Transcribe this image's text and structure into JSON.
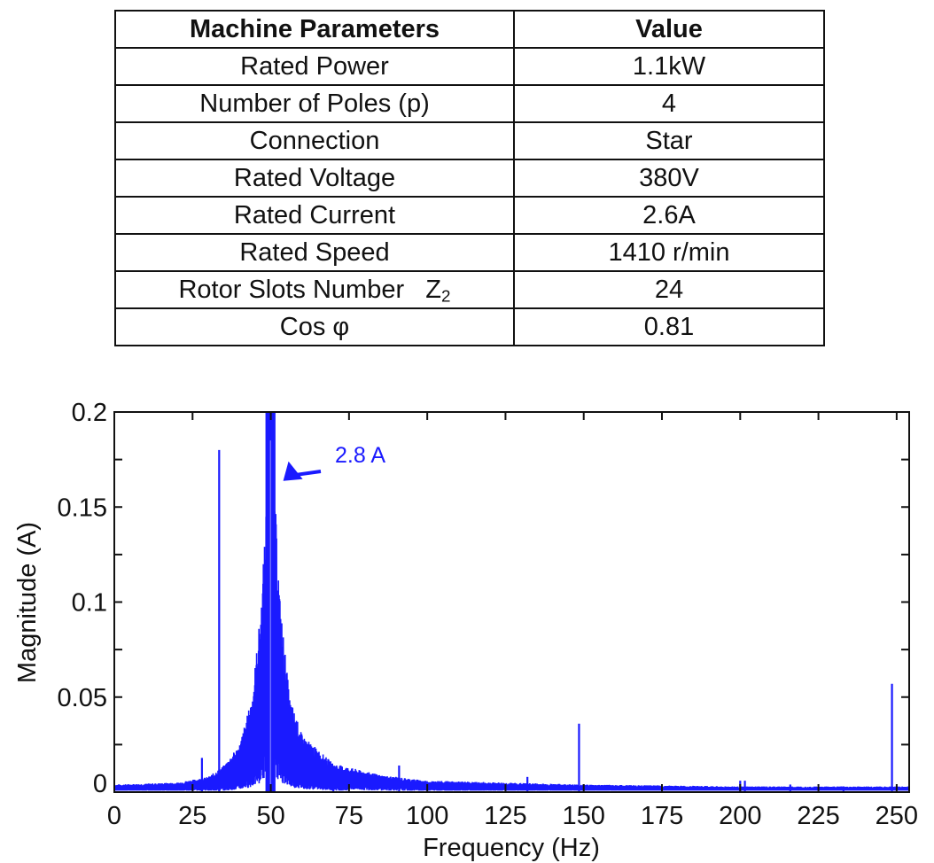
{
  "table": {
    "headers": [
      "Machine Parameters",
      "Value"
    ],
    "rows": [
      {
        "param": "Rated Power",
        "value": "1.1kW"
      },
      {
        "param": "Number of Poles (p)",
        "value": "4"
      },
      {
        "param": "Connection",
        "value": "Star"
      },
      {
        "param": "Rated Voltage",
        "value": "380V"
      },
      {
        "param": "Rated Current",
        "value": "2.6A"
      },
      {
        "param": "Rated Speed",
        "value": "1410 r/min"
      },
      {
        "param": "Rotor Slots Number   Z",
        "param_sub": "2",
        "value": "24"
      },
      {
        "param": "Cos φ",
        "value": "0.81"
      }
    ]
  },
  "chart_data": {
    "type": "line",
    "title": "",
    "xlabel": "Frequency (Hz)",
    "ylabel": "Magnitude (A)",
    "xlim": [
      0,
      254
    ],
    "ylim": [
      0,
      0.2
    ],
    "xticks": [
      0,
      25,
      50,
      75,
      100,
      125,
      150,
      175,
      200,
      225,
      250
    ],
    "yticks": [
      0,
      0.05,
      0.1,
      0.15,
      0.2
    ],
    "ytick_labels": [
      "0",
      "0.05",
      "0.1",
      "0.15",
      "0.2"
    ],
    "grid": false,
    "legend": null,
    "line_color": "#1a1aff",
    "annotation": {
      "text": "2.8 A",
      "points_to": {
        "x": 50,
        "y": 0.16
      },
      "text_at": {
        "x": 64,
        "y": 0.185
      }
    },
    "peaks": [
      {
        "x": 28,
        "y": 0.018
      },
      {
        "x": 33.5,
        "y": 0.18
      },
      {
        "x": 50,
        "y": 2.8,
        "clipped": true
      },
      {
        "x": 70,
        "y": 0.012
      },
      {
        "x": 91,
        "y": 0.014
      },
      {
        "x": 132,
        "y": 0.008
      },
      {
        "x": 148.5,
        "y": 0.036
      },
      {
        "x": 200,
        "y": 0.006
      },
      {
        "x": 201.5,
        "y": 0.006
      },
      {
        "x": 216,
        "y": 0.004
      },
      {
        "x": 233,
        "y": 0.003
      },
      {
        "x": 248.5,
        "y": 0.057
      }
    ],
    "noise_floor": [
      {
        "x": 0,
        "y": 0.004
      },
      {
        "x": 20,
        "y": 0.005
      },
      {
        "x": 30,
        "y": 0.008
      },
      {
        "x": 35,
        "y": 0.014
      },
      {
        "x": 40,
        "y": 0.025
      },
      {
        "x": 44,
        "y": 0.05
      },
      {
        "x": 47,
        "y": 0.1
      },
      {
        "x": 50,
        "y": 0.2
      },
      {
        "x": 53,
        "y": 0.1
      },
      {
        "x": 56,
        "y": 0.05
      },
      {
        "x": 60,
        "y": 0.03
      },
      {
        "x": 70,
        "y": 0.015
      },
      {
        "x": 85,
        "y": 0.009
      },
      {
        "x": 100,
        "y": 0.006
      },
      {
        "x": 150,
        "y": 0.004
      },
      {
        "x": 200,
        "y": 0.003
      },
      {
        "x": 254,
        "y": 0.003
      }
    ]
  }
}
